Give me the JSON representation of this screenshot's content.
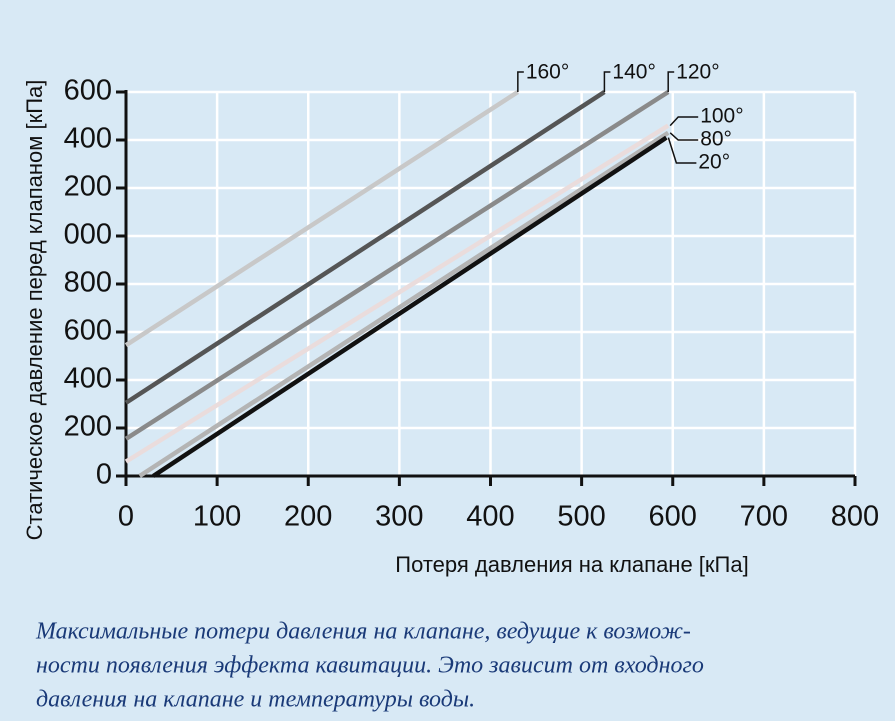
{
  "chart_data": {
    "type": "line",
    "ylabel": "Статическое давление перед клапаном [кПа]",
    "xlabel": "Потеря давления на клапане [кПа]",
    "caption": [
      "Максимальные потери давления на клапане, ведущие к возмож-",
      "ности появления эффекта кавитации. Это зависит от входного",
      "давления на клапане и температуры воды."
    ],
    "xlim": [
      0,
      800
    ],
    "xticks": [
      0,
      100,
      200,
      300,
      400,
      500,
      600,
      700,
      800
    ],
    "ylim": [
      0,
      1600
    ],
    "yticks": [
      0,
      200,
      400,
      600,
      800,
      {
        "value": 1000,
        "label": "000"
      },
      {
        "value": 1200,
        "label": "200"
      },
      {
        "value": 1400,
        "label": "400"
      },
      {
        "value": 1600,
        "label": "600"
      }
    ],
    "grid": true,
    "series": [
      {
        "name": "160°",
        "color": "#c8c8c8",
        "x": [
          0,
          430
        ],
        "values": [
          545,
          1600
        ]
      },
      {
        "name": "140°",
        "color": "#555555",
        "x": [
          0,
          525
        ],
        "values": [
          305,
          1600
        ]
      },
      {
        "name": "120°",
        "color": "#8a8a8a",
        "x": [
          0,
          595
        ],
        "values": [
          155,
          1600
        ]
      },
      {
        "name": "100°",
        "color": "#eadcdc",
        "x": [
          0,
          595
        ],
        "values": [
          60,
          1460
        ]
      },
      {
        "name": "80°",
        "color": "#b4b4b4",
        "x": [
          15,
          595
        ],
        "values": [
          0,
          1430
        ]
      },
      {
        "name": "20°",
        "color": "#111111",
        "x": [
          30,
          593
        ],
        "values": [
          0,
          1410
        ]
      }
    ]
  }
}
